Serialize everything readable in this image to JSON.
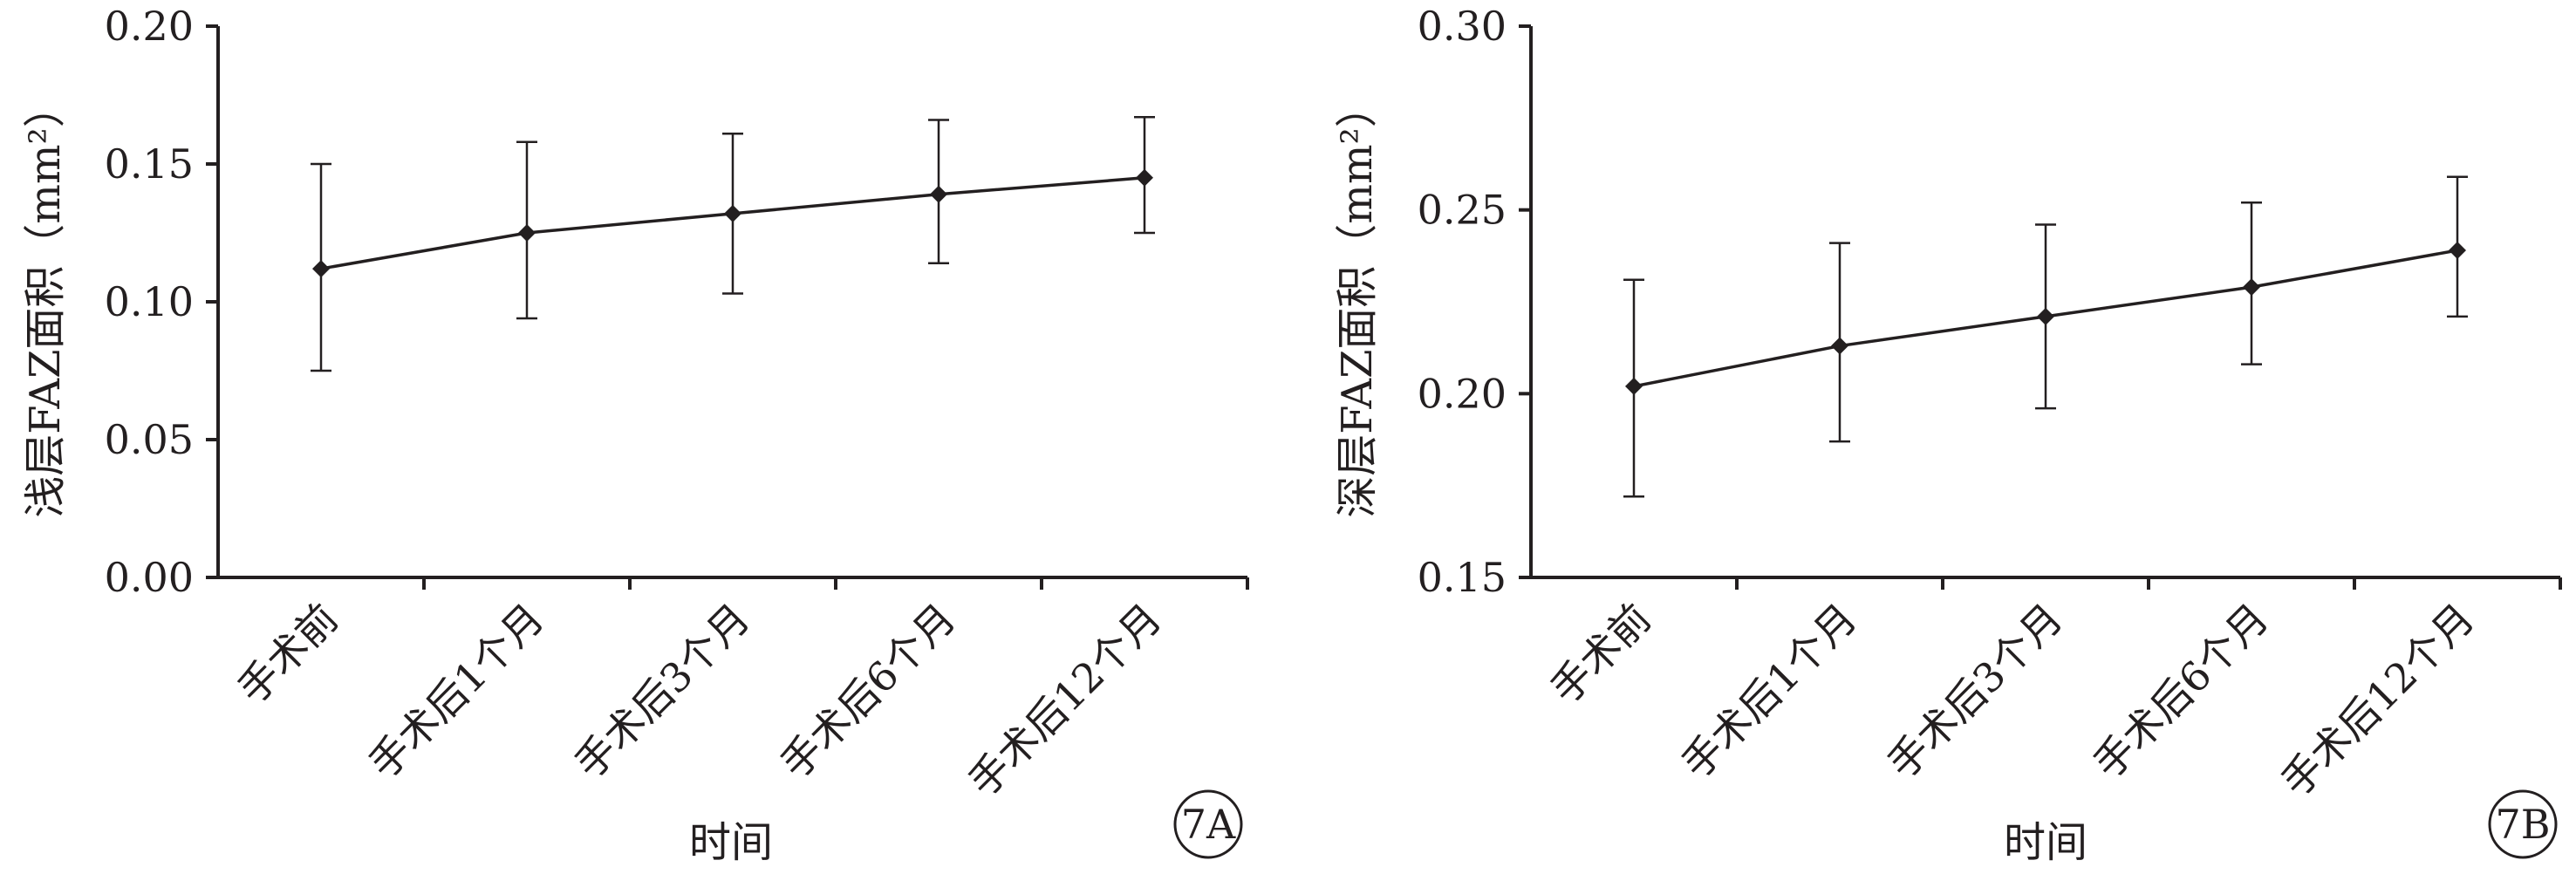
{
  "chart_data": [
    {
      "type": "line",
      "panel_label": "7A",
      "xlabel": "时间",
      "ylabel": "浅层FAZ面积（mm²）",
      "categories": [
        "手术前",
        "手术后1个月",
        "手术后3个月",
        "手术后6个月",
        "手术后12个月"
      ],
      "ylim": [
        0,
        0.2
      ],
      "yticks": [
        "0.00",
        "0.05",
        "0.10",
        "0.15",
        "0.20"
      ],
      "series": [
        {
          "values": [
            0.112,
            0.125,
            0.132,
            0.139,
            0.145
          ],
          "error_low": [
            0.075,
            0.094,
            0.103,
            0.114,
            0.125
          ],
          "error_high": [
            0.15,
            0.158,
            0.161,
            0.166,
            0.167
          ]
        }
      ],
      "grid": false,
      "marker": "diamond",
      "color": "#231f20"
    },
    {
      "type": "line",
      "panel_label": "7B",
      "xlabel": "时间",
      "ylabel": "深层FAZ面积（mm²）",
      "categories": [
        "手术前",
        "手术后1个月",
        "手术后3个月",
        "手术后6个月",
        "手术后12个月"
      ],
      "ylim": [
        0.15,
        0.3
      ],
      "yticks": [
        "0.15",
        "0.20",
        "0.25",
        "0.30"
      ],
      "series": [
        {
          "values": [
            0.202,
            0.213,
            0.221,
            0.229,
            0.239
          ],
          "error_low": [
            0.172,
            0.187,
            0.196,
            0.208,
            0.221
          ],
          "error_high": [
            0.231,
            0.241,
            0.246,
            0.252,
            0.259
          ]
        }
      ],
      "grid": false,
      "marker": "diamond",
      "color": "#231f20"
    }
  ]
}
